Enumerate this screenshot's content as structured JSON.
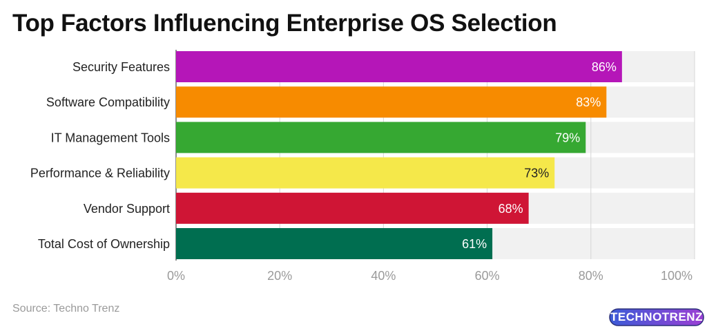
{
  "title": "Top Factors Influencing Enterprise OS Selection",
  "source": "Source: Techno Trenz",
  "logo": {
    "text": "TECHNOTRENZ"
  },
  "chart_data": {
    "type": "bar",
    "orientation": "horizontal",
    "title": "Top Factors Influencing Enterprise OS Selection",
    "categories": [
      "Security Features",
      "Software Compatibility",
      "IT Management Tools",
      "Performance & Reliability",
      "Vendor Support",
      "Total Cost of Ownership"
    ],
    "values": [
      86,
      83,
      79,
      73,
      68,
      61
    ],
    "value_labels": [
      "86%",
      "83%",
      "79%",
      "73%",
      "68%",
      "61%"
    ],
    "colors": [
      "#b516b8",
      "#f78b00",
      "#36a832",
      "#f5e84a",
      "#cf1535",
      "#006e50"
    ],
    "label_colors": [
      "#ffffff",
      "#ffffff",
      "#ffffff",
      "#222222",
      "#ffffff",
      "#ffffff"
    ],
    "xlim": [
      0,
      100
    ],
    "xticks": [
      "0%",
      "20%",
      "40%",
      "60%",
      "80%",
      "100%"
    ],
    "track_color": "#f1f1f1",
    "grid": true
  }
}
